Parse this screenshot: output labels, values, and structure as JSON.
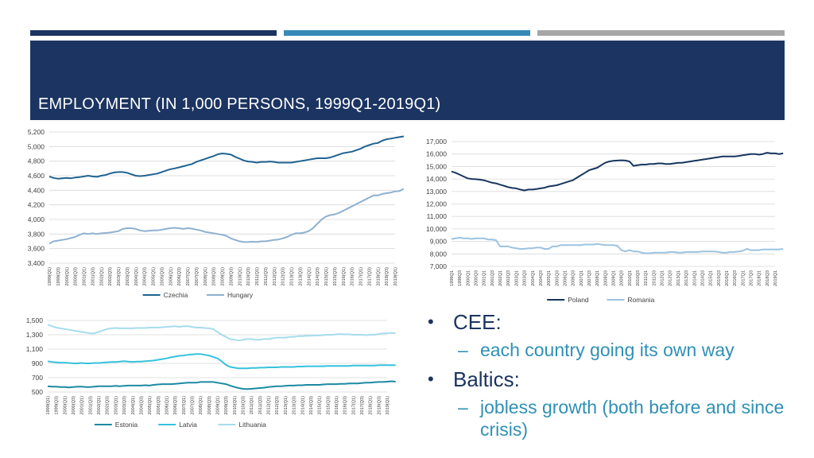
{
  "slide": {
    "title": "EMPLOYMENT (IN 1,000 PERSONS, 1999Q1-2019Q1)",
    "colors": {
      "bar1": "#1c3461",
      "bar2": "#3789b8",
      "bar3": "#a6a6a6",
      "header": "#1c3461"
    }
  },
  "bullets": [
    {
      "level": 1,
      "text": "CEE:"
    },
    {
      "level": 2,
      "text": "each country going its own way"
    },
    {
      "level": 1,
      "text": "Baltics:"
    },
    {
      "level": 2,
      "text": "jobless growth (both before and since crisis)"
    }
  ],
  "chart_data": [
    {
      "type": "line",
      "x_first": "1999Q1",
      "x_last": "2019Q1",
      "x_label_step": 2,
      "ylim": [
        3400,
        5200
      ],
      "yticks": [
        "3,400",
        "3,600",
        "3,800",
        "4,000",
        "4,200",
        "4,400",
        "4,600",
        "4,800",
        "5,000",
        "5,200"
      ],
      "grid": true,
      "legend": "bottom",
      "series": [
        {
          "name": "Czechia",
          "color": "#1f6392",
          "values": [
            4590,
            4570,
            4560,
            4565,
            4570,
            4565,
            4575,
            4580,
            4590,
            4600,
            4590,
            4585,
            4600,
            4610,
            4630,
            4645,
            4650,
            4650,
            4640,
            4620,
            4600,
            4595,
            4600,
            4610,
            4620,
            4630,
            4650,
            4670,
            4690,
            4700,
            4715,
            4730,
            4745,
            4760,
            4790,
            4810,
            4830,
            4850,
            4870,
            4895,
            4905,
            4900,
            4890,
            4860,
            4835,
            4810,
            4795,
            4790,
            4780,
            4790,
            4790,
            4795,
            4790,
            4780,
            4780,
            4780,
            4780,
            4790,
            4800,
            4810,
            4820,
            4830,
            4840,
            4840,
            4840,
            4850,
            4870,
            4890,
            4910,
            4920,
            4930,
            4950,
            4970,
            5000,
            5020,
            5040,
            5050,
            5080,
            5100,
            5110,
            5120,
            5130,
            5140
          ]
        },
        {
          "name": "Hungary",
          "color": "#8eb1d0",
          "values": [
            3670,
            3700,
            3710,
            3720,
            3730,
            3745,
            3760,
            3790,
            3810,
            3800,
            3810,
            3800,
            3810,
            3815,
            3820,
            3830,
            3840,
            3870,
            3880,
            3880,
            3870,
            3850,
            3840,
            3845,
            3850,
            3850,
            3860,
            3870,
            3880,
            3885,
            3880,
            3870,
            3880,
            3875,
            3860,
            3850,
            3830,
            3820,
            3810,
            3800,
            3790,
            3775,
            3740,
            3720,
            3700,
            3690,
            3690,
            3695,
            3690,
            3700,
            3700,
            3710,
            3720,
            3725,
            3740,
            3760,
            3790,
            3810,
            3810,
            3820,
            3840,
            3880,
            3940,
            4000,
            4040,
            4060,
            4070,
            4090,
            4120,
            4150,
            4180,
            4210,
            4240,
            4270,
            4300,
            4330,
            4330,
            4350,
            4360,
            4370,
            4385,
            4390,
            4420
          ]
        }
      ]
    },
    {
      "type": "line",
      "x_first": "1999Q1",
      "x_last": "2019Q1",
      "x_label_step": 2,
      "ylim": [
        7000,
        17000
      ],
      "yticks": [
        "7,000",
        "8,000",
        "9,000",
        "10,000",
        "11,000",
        "12,000",
        "13,000",
        "14,000",
        "15,000",
        "16,000",
        "17,000"
      ],
      "grid": true,
      "legend": "bottom",
      "series": [
        {
          "name": "Poland",
          "color": "#17365d",
          "values": [
            14600,
            14500,
            14350,
            14200,
            14050,
            14000,
            13980,
            13950,
            13900,
            13800,
            13700,
            13650,
            13550,
            13450,
            13350,
            13280,
            13250,
            13150,
            13080,
            13150,
            13150,
            13200,
            13250,
            13300,
            13400,
            13450,
            13500,
            13600,
            13700,
            13800,
            13900,
            14100,
            14300,
            14500,
            14700,
            14800,
            14900,
            15100,
            15300,
            15400,
            15450,
            15480,
            15500,
            15480,
            15400,
            15050,
            15100,
            15150,
            15150,
            15200,
            15200,
            15250,
            15250,
            15200,
            15200,
            15250,
            15300,
            15300,
            15350,
            15400,
            15450,
            15500,
            15550,
            15600,
            15650,
            15700,
            15750,
            15800,
            15800,
            15800,
            15800,
            15850,
            15900,
            15950,
            16000,
            16000,
            15950,
            16000,
            16100,
            16050,
            16050,
            16000,
            16050
          ]
        },
        {
          "name": "Romania",
          "color": "#9bc3e1",
          "values": [
            9200,
            9250,
            9300,
            9250,
            9250,
            9200,
            9250,
            9250,
            9250,
            9150,
            9150,
            9100,
            8600,
            8600,
            8600,
            8500,
            8450,
            8400,
            8400,
            8450,
            8450,
            8500,
            8500,
            8400,
            8400,
            8600,
            8600,
            8700,
            8700,
            8700,
            8700,
            8700,
            8700,
            8750,
            8750,
            8750,
            8800,
            8750,
            8700,
            8700,
            8700,
            8650,
            8300,
            8200,
            8300,
            8200,
            8200,
            8100,
            8050,
            8050,
            8100,
            8100,
            8100,
            8100,
            8150,
            8150,
            8100,
            8100,
            8150,
            8150,
            8150,
            8150,
            8200,
            8200,
            8200,
            8200,
            8150,
            8100,
            8100,
            8150,
            8150,
            8200,
            8250,
            8400,
            8300,
            8300,
            8300,
            8350,
            8350,
            8350,
            8350,
            8350,
            8400
          ]
        }
      ]
    },
    {
      "type": "line",
      "x_first": "1999Q1",
      "x_last": "2019Q1",
      "x_label_step": 2,
      "ylim": [
        500,
        1500
      ],
      "yticks": [
        "500",
        "700",
        "900",
        "1,100",
        "1,300",
        "1,500"
      ],
      "grid": true,
      "legend": "bottom",
      "series": [
        {
          "name": "Estonia",
          "color": "#1c8aa1",
          "values": [
            580,
            575,
            575,
            570,
            570,
            565,
            570,
            575,
            575,
            570,
            570,
            575,
            580,
            580,
            580,
            580,
            585,
            580,
            585,
            590,
            590,
            590,
            590,
            595,
            590,
            600,
            605,
            610,
            610,
            610,
            615,
            620,
            625,
            630,
            630,
            630,
            640,
            640,
            640,
            640,
            630,
            620,
            610,
            590,
            570,
            555,
            545,
            540,
            545,
            550,
            555,
            560,
            570,
            575,
            580,
            580,
            585,
            590,
            590,
            595,
            595,
            600,
            600,
            600,
            600,
            605,
            610,
            610,
            610,
            615,
            615,
            620,
            620,
            620,
            625,
            630,
            630,
            635,
            640,
            640,
            645,
            650,
            645
          ]
        },
        {
          "name": "Latvia",
          "color": "#35c2dc",
          "values": [
            930,
            920,
            915,
            910,
            910,
            905,
            900,
            900,
            905,
            900,
            900,
            905,
            905,
            910,
            915,
            920,
            920,
            925,
            930,
            925,
            920,
            925,
            925,
            930,
            935,
            940,
            950,
            960,
            970,
            985,
            995,
            1005,
            1010,
            1020,
            1025,
            1030,
            1030,
            1020,
            1010,
            990,
            970,
            930,
            880,
            850,
            840,
            830,
            830,
            830,
            835,
            835,
            840,
            840,
            845,
            845,
            845,
            850,
            850,
            850,
            850,
            855,
            855,
            860,
            860,
            860,
            860,
            860,
            865,
            865,
            865,
            865,
            865,
            865,
            870,
            870,
            870,
            870,
            870,
            870,
            875,
            875,
            875,
            875,
            875
          ]
        },
        {
          "name": "Lithuania",
          "color": "#a6dcee",
          "values": [
            1440,
            1420,
            1400,
            1390,
            1380,
            1370,
            1360,
            1350,
            1340,
            1330,
            1320,
            1320,
            1340,
            1360,
            1380,
            1390,
            1395,
            1390,
            1390,
            1390,
            1390,
            1395,
            1395,
            1395,
            1400,
            1400,
            1400,
            1405,
            1410,
            1415,
            1420,
            1410,
            1420,
            1420,
            1410,
            1400,
            1400,
            1395,
            1390,
            1380,
            1340,
            1300,
            1270,
            1240,
            1230,
            1220,
            1230,
            1240,
            1240,
            1230,
            1230,
            1240,
            1240,
            1250,
            1260,
            1260,
            1260,
            1270,
            1270,
            1280,
            1280,
            1285,
            1285,
            1290,
            1290,
            1295,
            1300,
            1300,
            1305,
            1310,
            1305,
            1305,
            1300,
            1300,
            1300,
            1295,
            1300,
            1300,
            1310,
            1320,
            1320,
            1325,
            1320
          ]
        }
      ]
    }
  ]
}
